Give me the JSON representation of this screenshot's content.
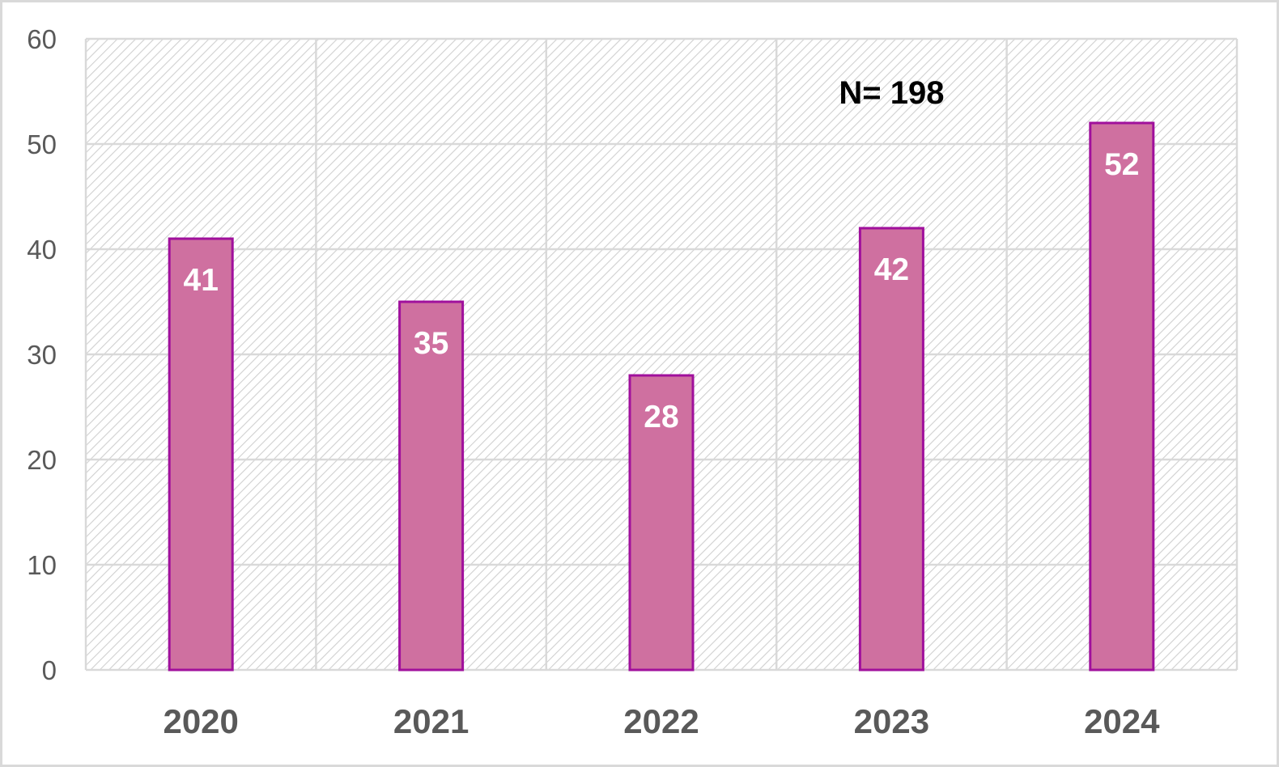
{
  "chart_data": {
    "type": "bar",
    "categories": [
      "2020",
      "2021",
      "2022",
      "2023",
      "2024"
    ],
    "values": [
      41,
      35,
      28,
      42,
      52
    ],
    "data_labels": [
      "41",
      "35",
      "28",
      "42",
      "52"
    ],
    "title": "",
    "xlabel": "",
    "ylabel": "",
    "ylim": [
      0,
      60
    ],
    "yticks": [
      "0",
      "10",
      "20",
      "30",
      "40",
      "50",
      "60"
    ],
    "annotation": "N= 198",
    "grid": true,
    "legend": "none",
    "colors": {
      "bar_fill": "#cf70a0",
      "bar_stroke": "#a0109c",
      "grid": "#d9d9d9",
      "hatch": "#cfcfcf",
      "tick_text": "#595959",
      "data_label_text": "#ffffff",
      "annotation_text": "#000000"
    }
  }
}
